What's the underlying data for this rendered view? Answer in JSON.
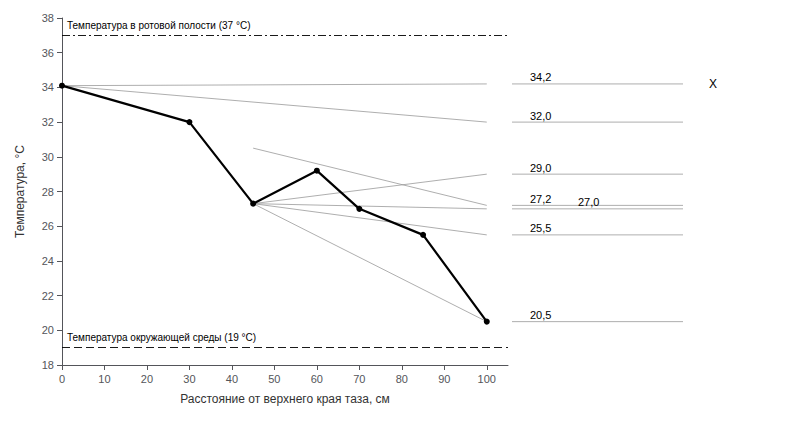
{
  "chart_data": {
    "type": "line",
    "xlabel": "Расстояние от верхнего края таза, см",
    "ylabel": "Температура, °С",
    "xlim": [
      0,
      105
    ],
    "ylim": [
      18,
      38
    ],
    "xticks": [
      0,
      10,
      20,
      30,
      40,
      50,
      60,
      70,
      80,
      90,
      100
    ],
    "yticks": [
      18,
      20,
      22,
      24,
      26,
      28,
      30,
      32,
      34,
      36,
      38
    ],
    "grid": false,
    "legend": false,
    "series": [
      {
        "x": [
          0,
          100
        ],
        "values": [
          34.1,
          34.2
        ],
        "color": "#999999"
      },
      {
        "x": [
          0,
          100
        ],
        "values": [
          34.1,
          32.0
        ],
        "color": "#999999"
      },
      {
        "x": [
          45,
          100
        ],
        "values": [
          30.5,
          27.2
        ],
        "color": "#999999"
      },
      {
        "x": [
          45,
          100
        ],
        "values": [
          27.3,
          29.0
        ],
        "color": "#999999"
      },
      {
        "x": [
          45,
          100
        ],
        "values": [
          27.3,
          27.0
        ],
        "color": "#999999"
      },
      {
        "x": [
          45,
          100
        ],
        "values": [
          27.3,
          25.5
        ],
        "color": "#999999"
      },
      {
        "x": [
          45,
          100
        ],
        "values": [
          27.3,
          20.5
        ],
        "color": "#999999"
      },
      {
        "x": [
          0,
          30,
          45,
          60,
          70,
          85,
          100
        ],
        "values": [
          34.1,
          32.0,
          27.3,
          29.2,
          27.0,
          25.5,
          20.5
        ],
        "color": "#000000",
        "marker": "circle"
      }
    ],
    "reference_lines": [
      {
        "y": 37,
        "label": "Температура в ротовой полости (37 °С)",
        "line_style": "dashdot",
        "color": "#000000"
      },
      {
        "y": 19,
        "label": "Температура окружающей среды (19 °С)",
        "line_style": "dashed",
        "color": "#000000"
      }
    ],
    "annotations": [
      {
        "text": "34,2",
        "y": 34.2,
        "color": "#999999"
      },
      {
        "text": "32,0",
        "y": 32.0,
        "color": "#999999"
      },
      {
        "text": "27,2",
        "y": 27.2,
        "color": "#999999"
      },
      {
        "text": "29,0",
        "y": 29.0,
        "color": "#999999"
      },
      {
        "text": "27,0",
        "y": 27.0,
        "color": "#999999"
      },
      {
        "text": "25,5",
        "y": 25.5,
        "color": "#999999"
      },
      {
        "text": "20,5",
        "y": 20.5,
        "color": "#999999"
      }
    ],
    "markers": [
      {
        "text": "X",
        "y": 34.2
      }
    ]
  }
}
